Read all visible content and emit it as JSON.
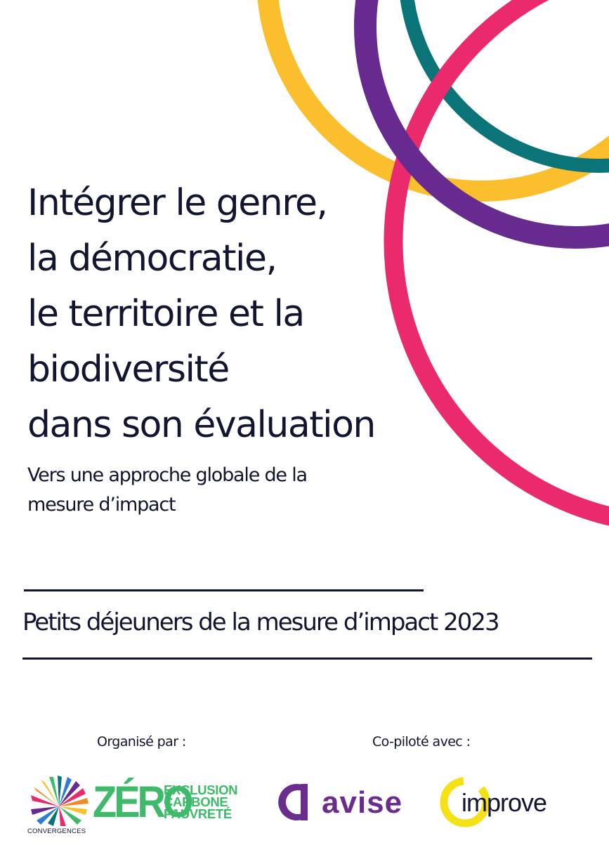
{
  "cover": {
    "title_lines": [
      "Intégrer le genre,",
      "la démocratie,",
      "le territoire et la",
      "biodiversité",
      "dans son évaluation"
    ],
    "subtitle_lines": [
      "Vers une approche globale de la",
      "mesure d’impact"
    ],
    "series_title": "Petits déjeuners de la mesure d’impact 2023",
    "organised_by_label": "Organisé par :",
    "copiloted_with_label": "Co-piloté avec :"
  },
  "logos": {
    "convergences": "CONVERGENCES",
    "zero_big": "ZÉRO",
    "zero_lines": [
      "EXCLUSION",
      "CARBONE",
      "PAUVRETÉ"
    ],
    "avise": "avise",
    "improve": "improve"
  },
  "colors": {
    "text": "#121530",
    "arc_yellow": "#fbbf2e",
    "arc_purple": "#672b8f",
    "arc_teal": "#0b7478",
    "arc_pink": "#ea2a6d",
    "zero_green": "#3fba6b",
    "avise_purple": "#6a2d8f",
    "improve_yellow": "#f5e216"
  },
  "icons": {
    "arcs": "decorative-ring-arcs",
    "convergences": "convergences-burst-logo",
    "avise": "avise-symbol",
    "improve": "improve-ring"
  }
}
